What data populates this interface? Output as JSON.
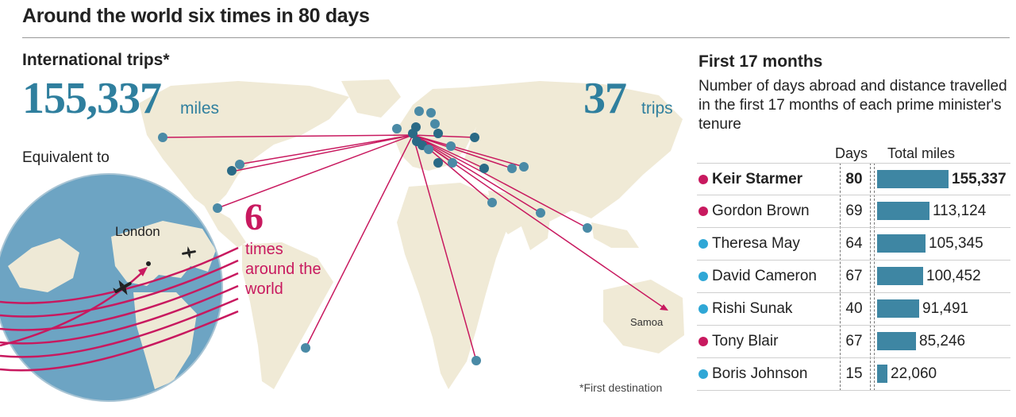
{
  "title": "Around the world six times in 80 days",
  "left": {
    "intl_label": "International trips*",
    "miles_number": "155,337",
    "miles_unit": "miles",
    "trips_number": "37",
    "trips_unit": "trips",
    "equivalent": "Equivalent to",
    "times_number": "6",
    "times_text": "times\naround the\nworld",
    "london": "London",
    "samoa": "Samoa",
    "footnote": "*First destination"
  },
  "panel": {
    "title": "First 17 months",
    "subtitle": "Number of days abroad and distance travelled in the first 17 months of each prime minister's tenure",
    "col_days": "Days",
    "col_miles": "Total miles"
  },
  "colors": {
    "accent_blue": "#2f7f9e",
    "bar_blue": "#3e86a3",
    "labour_crimson": "#c8195f",
    "conservative_blue": "#2fa7d6",
    "land": "#f0ead6",
    "sea": "#ffffff"
  },
  "chart_data": {
    "type": "bar",
    "orientation": "horizontal",
    "title": "First 17 months",
    "categories": [
      "Keir Starmer",
      "Gordon Brown",
      "Theresa May",
      "David Cameron",
      "Rishi Sunak",
      "Tony Blair",
      "Boris Johnson"
    ],
    "series": [
      {
        "name": "Days",
        "values": [
          80,
          69,
          64,
          67,
          40,
          67,
          15
        ]
      },
      {
        "name": "Total miles",
        "values": [
          155337,
          113124,
          105345,
          100452,
          91491,
          85246,
          22060
        ]
      }
    ],
    "miles_labels": [
      "155,337",
      "113,124",
      "105,345",
      "100,452",
      "91,491",
      "85,246",
      "22,060"
    ],
    "party_colors": [
      "#c8195f",
      "#c8195f",
      "#2fa7d6",
      "#2fa7d6",
      "#2fa7d6",
      "#c8195f",
      "#2fa7d6"
    ],
    "highlight": "Keir Starmer",
    "xlim": [
      0,
      155337
    ]
  }
}
